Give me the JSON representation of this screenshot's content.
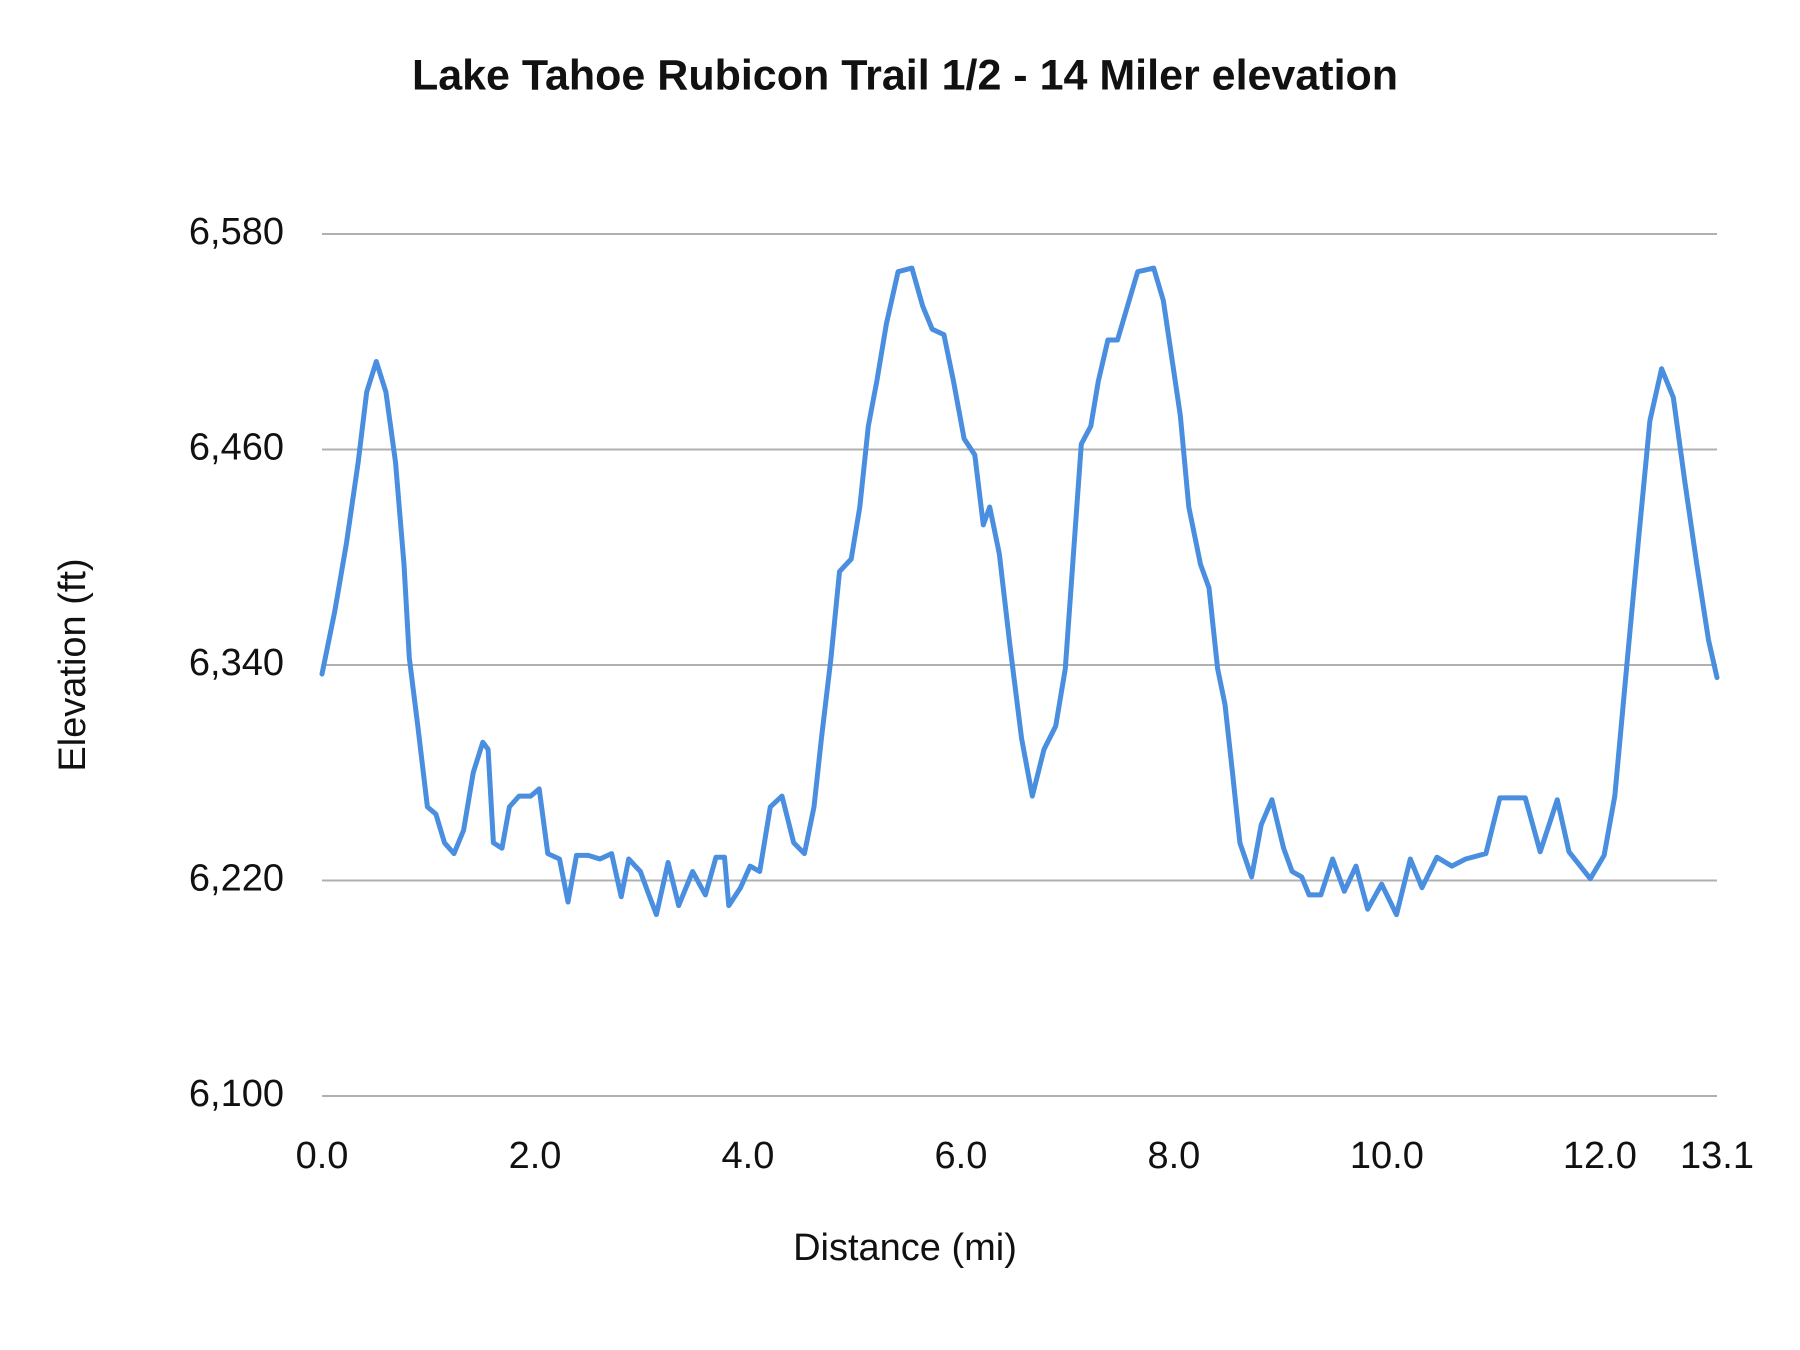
{
  "chart_data": {
    "type": "line",
    "title": "Lake Tahoe Rubicon Trail 1/2 - 14 Miler elevation",
    "x_label": "Distance (mi)",
    "y_label": "Elevation (ft)",
    "x": [
      0,
      0.12,
      0.23,
      0.34,
      0.42,
      0.51,
      0.6,
      0.69,
      0.77,
      0.82,
      0.9,
      0.99,
      1.07,
      1.15,
      1.24,
      1.33,
      1.42,
      1.51,
      1.56,
      1.61,
      1.69,
      1.76,
      1.85,
      1.96,
      2.04,
      2.12,
      2.23,
      2.31,
      2.39,
      2.5,
      2.61,
      2.72,
      2.81,
      2.88,
      2.99,
      3.07,
      3.14,
      3.25,
      3.35,
      3.48,
      3.6,
      3.7,
      3.78,
      3.82,
      3.93,
      4.02,
      4.11,
      4.21,
      4.32,
      4.43,
      4.53,
      4.62,
      4.69,
      4.78,
      4.86,
      4.97,
      5.05,
      5.13,
      5.21,
      5.3,
      5.41,
      5.54,
      5.64,
      5.73,
      5.84,
      5.93,
      6.03,
      6.13,
      6.21,
      6.27,
      6.36,
      6.46,
      6.57,
      6.67,
      6.78,
      6.89,
      6.98,
      7.05,
      7.13,
      7.22,
      7.29,
      7.38,
      7.47,
      7.55,
      7.66,
      7.81,
      7.9,
      7.98,
      8.06,
      8.14,
      8.25,
      8.33,
      8.41,
      8.48,
      8.55,
      8.62,
      8.73,
      8.82,
      8.92,
      9.03,
      9.11,
      9.2,
      9.27,
      9.38,
      9.49,
      9.6,
      9.71,
      9.82,
      9.95,
      10.09,
      10.22,
      10.33,
      10.47,
      10.61,
      10.74,
      10.93,
      11.06,
      11.3,
      11.44,
      11.6,
      11.71,
      11.91,
      12.04,
      12.14,
      12.25,
      12.36,
      12.47,
      12.58,
      12.69,
      12.8,
      12.91,
      13.02,
      13.1
    ],
    "values": [
      6335,
      6370,
      6408,
      6453,
      6492,
      6509,
      6492,
      6453,
      6396,
      6344,
      6306,
      6261,
      6257,
      6241,
      6235,
      6248,
      6280,
      6297,
      6293,
      6241,
      6238,
      6261,
      6267,
      6267,
      6271,
      6235,
      6232,
      6208,
      6234,
      6234,
      6232,
      6235,
      6211,
      6232,
      6225,
      6212,
      6201,
      6230,
      6206,
      6225,
      6212,
      6233,
      6233,
      6206,
      6216,
      6228,
      6225,
      6261,
      6267,
      6241,
      6235,
      6261,
      6299,
      6344,
      6392,
      6399,
      6428,
      6473,
      6498,
      6530,
      6559,
      6561,
      6540,
      6527,
      6524,
      6498,
      6466,
      6457,
      6418,
      6428,
      6402,
      6351,
      6299,
      6267,
      6293,
      6306,
      6338,
      6396,
      6463,
      6473,
      6498,
      6521,
      6521,
      6537,
      6559,
      6561,
      6543,
      6511,
      6479,
      6428,
      6396,
      6383,
      6338,
      6318,
      6280,
      6241,
      6222,
      6251,
      6265,
      6238,
      6225,
      6222,
      6212,
      6212,
      6232,
      6214,
      6228,
      6204,
      6218,
      6201,
      6232,
      6216,
      6233,
      6228,
      6232,
      6235,
      6266,
      6266,
      6236,
      6265,
      6236,
      6221,
      6234,
      6267,
      6338,
      6408,
      6476,
      6505,
      6489,
      6441,
      6396,
      6354,
      6333
    ],
    "color": "#4a8ee0",
    "xlim": [
      0,
      13.1
    ],
    "ylim": [
      6100,
      6580
    ],
    "xticks": [
      {
        "value": 0,
        "label": "0.0"
      },
      {
        "value": 2,
        "label": "2.0"
      },
      {
        "value": 4,
        "label": "4.0"
      },
      {
        "value": 6,
        "label": "6.0"
      },
      {
        "value": 8,
        "label": "8.0"
      },
      {
        "value": 10,
        "label": "10.0"
      },
      {
        "value": 12,
        "label": "12.0"
      },
      13.1
    ],
    "yticks": [
      {
        "value": 6100,
        "label": "6,100"
      },
      {
        "value": 6220,
        "label": "6,220"
      },
      {
        "value": 6340,
        "label": "6,340"
      },
      {
        "value": 6460,
        "label": "6,460"
      },
      {
        "value": 6580,
        "label": "6,580"
      }
    ],
    "grid": true
  }
}
